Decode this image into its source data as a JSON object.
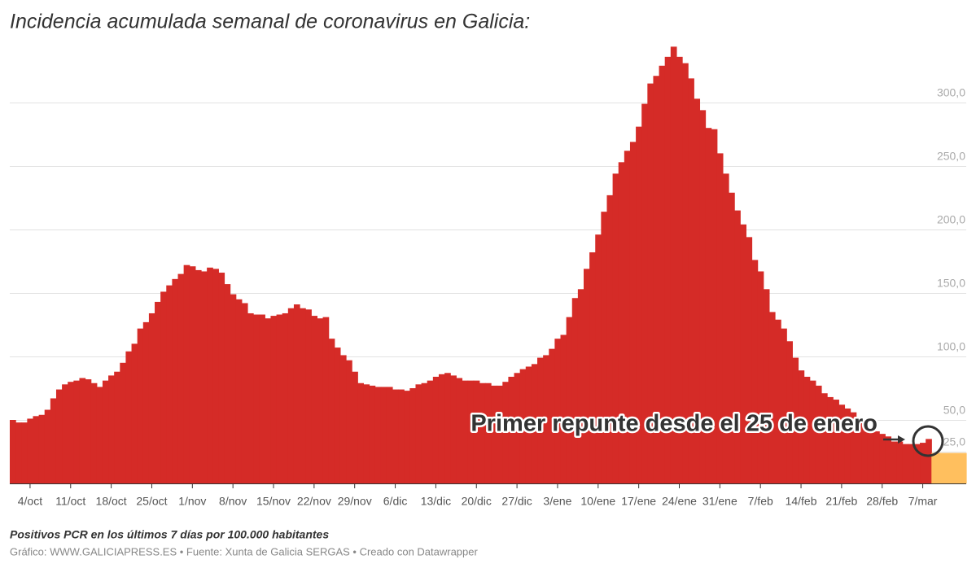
{
  "chart_data": {
    "type": "bar",
    "title": "Incidencia acumulada semanal de coronavirus en Galicia:",
    "caption": "Positivos PCR en los últimos 7 días por 100.000 habitantes",
    "source": "Gráfico: WWW.GALICIAPRESS.ES • Fuente: Xunta de Galicia SERGAS • Creado con Datawrapper",
    "annotations": [
      "Primer repunte desde el 25 de enero"
    ],
    "categories": [
      null,
      null,
      null,
      "4/oct",
      null,
      null,
      null,
      null,
      null,
      null,
      "11/oct",
      null,
      null,
      null,
      null,
      null,
      null,
      "18/oct",
      null,
      null,
      null,
      null,
      null,
      null,
      "25/oct",
      null,
      null,
      null,
      null,
      null,
      null,
      "1/nov",
      null,
      null,
      null,
      null,
      null,
      null,
      "8/nov",
      null,
      null,
      null,
      null,
      null,
      null,
      "15/nov",
      null,
      null,
      null,
      null,
      null,
      null,
      "22/nov",
      null,
      null,
      null,
      null,
      null,
      null,
      "29/nov",
      null,
      null,
      null,
      null,
      null,
      null,
      "6/dic",
      null,
      null,
      null,
      null,
      null,
      null,
      "13/dic",
      null,
      null,
      null,
      null,
      null,
      null,
      "20/dic",
      null,
      null,
      null,
      null,
      null,
      null,
      "27/dic",
      null,
      null,
      null,
      null,
      null,
      null,
      "3/ene",
      null,
      null,
      null,
      null,
      null,
      null,
      "10/ene",
      null,
      null,
      null,
      null,
      null,
      null,
      "17/ene",
      null,
      null,
      null,
      null,
      null,
      null,
      "24/ene",
      null,
      null,
      null,
      null,
      null,
      null,
      "31/ene",
      null,
      null,
      null,
      null,
      null,
      null,
      "7/feb",
      null,
      null,
      null,
      null,
      null,
      null,
      "14/feb",
      null,
      null,
      null,
      null,
      null,
      null,
      "21/feb",
      null,
      null,
      null,
      null,
      null,
      null,
      "28/feb",
      null,
      null,
      null,
      null,
      null,
      null,
      "7/mar",
      null,
      null,
      null,
      null,
      null,
      null,
      null
    ],
    "series": [
      {
        "color": "#d52b27",
        "values": [
          50,
          48,
          48,
          51,
          53,
          54,
          58,
          67,
          74,
          78,
          80,
          81,
          83,
          82,
          79,
          76,
          81,
          85,
          88,
          95,
          104,
          110,
          122,
          127,
          134,
          143,
          151,
          156,
          161,
          165,
          172,
          171,
          168,
          167,
          170,
          169,
          166,
          157,
          149,
          145,
          142,
          134,
          133,
          133,
          130,
          132,
          133,
          134,
          138,
          141,
          138,
          137,
          132,
          130,
          131,
          114,
          107,
          101,
          97,
          88,
          79,
          78,
          77,
          76,
          76,
          76,
          74,
          74,
          73,
          75,
          78,
          79,
          81,
          84,
          86,
          87,
          85,
          83,
          81,
          81,
          81,
          79,
          79,
          77,
          77,
          80,
          84,
          87,
          90,
          92,
          94,
          99,
          101,
          106,
          114,
          117,
          131,
          146,
          153,
          169,
          182,
          196,
          214,
          227,
          244,
          253,
          262,
          269,
          281,
          299,
          315,
          321,
          329,
          336,
          344,
          336,
          331,
          319,
          303,
          294,
          280,
          279,
          260,
          244,
          229,
          215,
          204,
          194,
          176,
          167,
          153,
          135,
          129,
          122,
          112,
          99,
          89,
          84,
          81,
          77,
          71,
          68,
          66,
          62,
          59,
          56,
          51,
          47,
          44,
          41,
          39,
          37,
          33,
          33,
          31,
          31,
          31,
          32,
          35,
          null,
          null,
          null,
          null,
          null,
          null
        ]
      },
      {
        "color": "#ffbf5e",
        "values": [
          null,
          null,
          null,
          null,
          null,
          null,
          null,
          null,
          null,
          null,
          null,
          null,
          null,
          null,
          null,
          null,
          null,
          null,
          null,
          null,
          null,
          null,
          null,
          null,
          null,
          null,
          null,
          null,
          null,
          null,
          null,
          null,
          null,
          null,
          null,
          null,
          null,
          null,
          null,
          null,
          null,
          null,
          null,
          null,
          null,
          null,
          null,
          null,
          null,
          null,
          null,
          null,
          null,
          null,
          null,
          null,
          null,
          null,
          null,
          null,
          null,
          null,
          null,
          null,
          null,
          null,
          null,
          null,
          null,
          null,
          null,
          null,
          null,
          null,
          null,
          null,
          null,
          null,
          null,
          null,
          null,
          null,
          null,
          null,
          null,
          null,
          null,
          null,
          null,
          null,
          null,
          null,
          null,
          null,
          null,
          null,
          null,
          null,
          null,
          null,
          null,
          null,
          null,
          null,
          null,
          null,
          null,
          null,
          null,
          null,
          null,
          null,
          null,
          null,
          null,
          null,
          null,
          null,
          null,
          null,
          null,
          null,
          null,
          null,
          null,
          null,
          null,
          null,
          null,
          null,
          null,
          null,
          null,
          null,
          null,
          null,
          null,
          null,
          null,
          null,
          null,
          null,
          null,
          null,
          null,
          null,
          null,
          null,
          null,
          null,
          null,
          null,
          null,
          null,
          null,
          null,
          null,
          null,
          null,
          24,
          24,
          24,
          24,
          24,
          24
        ]
      }
    ],
    "ylim": [
      0,
      350
    ],
    "yticks": [
      {
        "value": 25,
        "label": "25,0"
      },
      {
        "value": 50,
        "label": "50,0"
      },
      {
        "value": 100,
        "label": "100,0"
      },
      {
        "value": 150,
        "label": "150,0"
      },
      {
        "value": 200,
        "label": "200,0"
      },
      {
        "value": 250,
        "label": "250,0"
      },
      {
        "value": 300,
        "label": "300,0"
      }
    ],
    "grid": true
  }
}
